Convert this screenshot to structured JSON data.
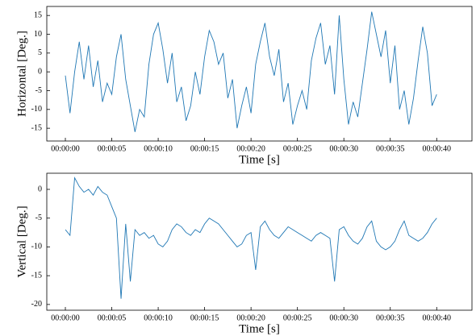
{
  "chart_data": [
    {
      "type": "line",
      "xlabel": "Time [s]",
      "ylabel": "Horizontal [Deg.]",
      "x": [
        0,
        0.5,
        1,
        1.5,
        2,
        2.5,
        3,
        3.5,
        4,
        4.5,
        5,
        5.5,
        6,
        6.5,
        7,
        7.5,
        8,
        8.5,
        9,
        9.5,
        10,
        10.5,
        11,
        11.5,
        12,
        12.5,
        13,
        13.5,
        14,
        14.5,
        15,
        15.5,
        16,
        16.5,
        17,
        17.5,
        18,
        18.5,
        19,
        19.5,
        20,
        20.5,
        21,
        21.5,
        22,
        22.5,
        23,
        23.5,
        24,
        24.5,
        25,
        25.5,
        26,
        26.5,
        27,
        27.5,
        28,
        28.5,
        29,
        29.5,
        30,
        30.5,
        31,
        31.5,
        32,
        32.5,
        33,
        33.5,
        34,
        34.5,
        35,
        35.5,
        36,
        36.5,
        37,
        37.5,
        38,
        38.5,
        39,
        39.5,
        40
      ],
      "series": [
        {
          "color": "#1f77b4",
          "values": [
            -1,
            -11,
            0,
            8,
            -2,
            7,
            -4,
            3,
            -8,
            -3,
            -6,
            4,
            10,
            -2,
            -9,
            -16,
            -10,
            -12,
            2,
            10,
            13,
            6,
            -3,
            5,
            -8,
            -4,
            -13,
            -9,
            0,
            -6,
            4,
            11,
            8,
            2,
            5,
            -7,
            -2,
            -15,
            -9,
            -4,
            -11,
            2,
            8,
            13,
            4,
            -1,
            6,
            -8,
            -3,
            -14,
            -9,
            -5,
            -10,
            3,
            9,
            13,
            2,
            7,
            -6,
            15,
            -2,
            -14,
            -8,
            -12,
            -3,
            6,
            16,
            10,
            4,
            11,
            -3,
            7,
            -10,
            -5,
            -14,
            -7,
            3,
            12,
            5,
            -9,
            -6
          ]
        }
      ],
      "xlim": [
        -2,
        43.8
      ],
      "ylim": [
        -18.4,
        17.4
      ],
      "xticks": [
        {
          "value": 0,
          "label": "00:00:00"
        },
        {
          "value": 5,
          "label": "00:00:05"
        },
        {
          "value": 10,
          "label": "00:00:10"
        },
        {
          "value": 15,
          "label": "00:00:15"
        },
        {
          "value": 20,
          "label": "00:00:20"
        },
        {
          "value": 25,
          "label": "00:00:25"
        },
        {
          "value": 30,
          "label": "00:00:30"
        },
        {
          "value": 35,
          "label": "00:00:35"
        },
        {
          "value": 40,
          "label": "00:00:40"
        }
      ],
      "yticks": [
        -15,
        -10,
        -5,
        0,
        5,
        10,
        15
      ]
    },
    {
      "type": "line",
      "xlabel": "Time [s]",
      "ylabel": "Vertical [Deg.]",
      "x": [
        0,
        0.5,
        1,
        1.5,
        2,
        2.5,
        3,
        3.5,
        4,
        4.5,
        5,
        5.5,
        6,
        6.5,
        7,
        7.5,
        8,
        8.5,
        9,
        9.5,
        10,
        10.5,
        11,
        11.5,
        12,
        12.5,
        13,
        13.5,
        14,
        14.5,
        15,
        15.5,
        16,
        16.5,
        17,
        17.5,
        18,
        18.5,
        19,
        19.5,
        20,
        20.5,
        21,
        21.5,
        22,
        22.5,
        23,
        23.5,
        24,
        24.5,
        25,
        25.5,
        26,
        26.5,
        27,
        27.5,
        28,
        28.5,
        29,
        29.5,
        30,
        30.5,
        31,
        31.5,
        32,
        32.5,
        33,
        33.5,
        34,
        34.5,
        35,
        35.5,
        36,
        36.5,
        37,
        37.5,
        38,
        38.5,
        39,
        39.5,
        40
      ],
      "series": [
        {
          "color": "#1f77b4",
          "values": [
            -7,
            -8,
            2,
            0.5,
            -0.5,
            0,
            -1,
            0.5,
            -0.5,
            -1,
            -3,
            -5,
            -19,
            -6,
            -16,
            -7,
            -8,
            -7.5,
            -8.5,
            -8,
            -9.5,
            -10,
            -9,
            -7,
            -6,
            -6.5,
            -7.5,
            -8,
            -7,
            -7.5,
            -6,
            -5,
            -5.5,
            -6,
            -7,
            -8,
            -9,
            -10,
            -9.5,
            -8,
            -7.5,
            -14,
            -6.5,
            -5.5,
            -7,
            -8,
            -8.5,
            -7.5,
            -6.5,
            -7,
            -7.5,
            -8,
            -8.5,
            -9,
            -8,
            -7.5,
            -8,
            -8.5,
            -16,
            -7,
            -6.5,
            -8,
            -9,
            -9.5,
            -8.5,
            -6.5,
            -5.5,
            -9,
            -10,
            -10.5,
            -10,
            -9,
            -7,
            -5.5,
            -8,
            -8.5,
            -9,
            -8.5,
            -7.5,
            -6,
            -5
          ]
        }
      ],
      "xlim": [
        -2,
        43.8
      ],
      "ylim": [
        -21,
        2.8
      ],
      "xticks": [
        {
          "value": 0,
          "label": "00:00:00"
        },
        {
          "value": 5,
          "label": "00:00:05"
        },
        {
          "value": 10,
          "label": "00:00:10"
        },
        {
          "value": 15,
          "label": "00:00:15"
        },
        {
          "value": 20,
          "label": "00:00:20"
        },
        {
          "value": 25,
          "label": "00:00:25"
        },
        {
          "value": 30,
          "label": "00:00:30"
        },
        {
          "value": 35,
          "label": "00:00:35"
        },
        {
          "value": 40,
          "label": "00:00:40"
        }
      ],
      "yticks": [
        -20,
        -15,
        -10,
        -5,
        0
      ]
    }
  ]
}
